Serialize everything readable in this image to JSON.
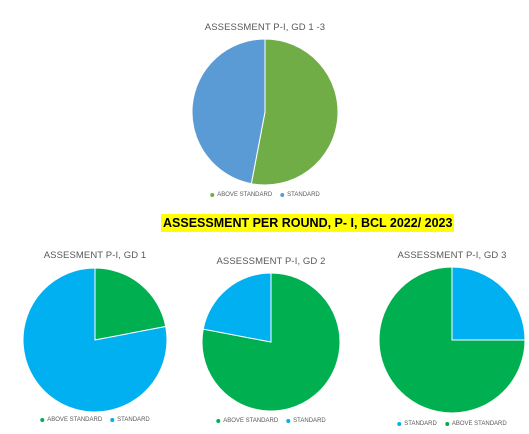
{
  "banner": "ASSESSMENT PER ROUND, P- I, BCL 2022/ 2023",
  "colors": {
    "top_above": "#70ad47",
    "top_standard": "#5b9bd5",
    "above": "#00b050",
    "standard": "#00b0f0"
  },
  "chart_data": [
    {
      "type": "pie",
      "title": "ASSESSMENT P-I, GD 1 -3",
      "slices": [
        {
          "label": "ABOVE STANDARD",
          "value": 53,
          "color": "#70ad47"
        },
        {
          "label": "STANDARD",
          "value": 47,
          "color": "#5b9bd5"
        }
      ],
      "legend": [
        "ABOVE STANDARD",
        "STANDARD"
      ],
      "legend_position": "bottom"
    },
    {
      "type": "pie",
      "title": "ASSESMENT P-I, GD 1",
      "slices": [
        {
          "label": "ABOVE STANDARD",
          "value": 22,
          "color": "#00b050"
        },
        {
          "label": "STANDARD",
          "value": 78,
          "color": "#00b0f0"
        }
      ],
      "legend": [
        "ABOVE STANDARD",
        "STANDARD"
      ],
      "legend_position": "bottom"
    },
    {
      "type": "pie",
      "title": "ASSESSMENT P-I, GD 2",
      "slices": [
        {
          "label": "ABOVE STANDARD",
          "value": 78,
          "color": "#00b050"
        },
        {
          "label": "STANDARD",
          "value": 22,
          "color": "#00b0f0"
        }
      ],
      "legend": [
        "ABOVE STANDARD",
        "STANDARD"
      ],
      "legend_position": "bottom"
    },
    {
      "type": "pie",
      "title": "ASSESSMENT P-I, GD 3",
      "slices": [
        {
          "label": "STANDARD",
          "value": 25,
          "color": "#00b0f0"
        },
        {
          "label": "ABOVE STANDARD",
          "value": 75,
          "color": "#00b050"
        }
      ],
      "legend": [
        "STANDARD",
        "ABOVE STANDARD"
      ],
      "legend_position": "bottom"
    }
  ]
}
